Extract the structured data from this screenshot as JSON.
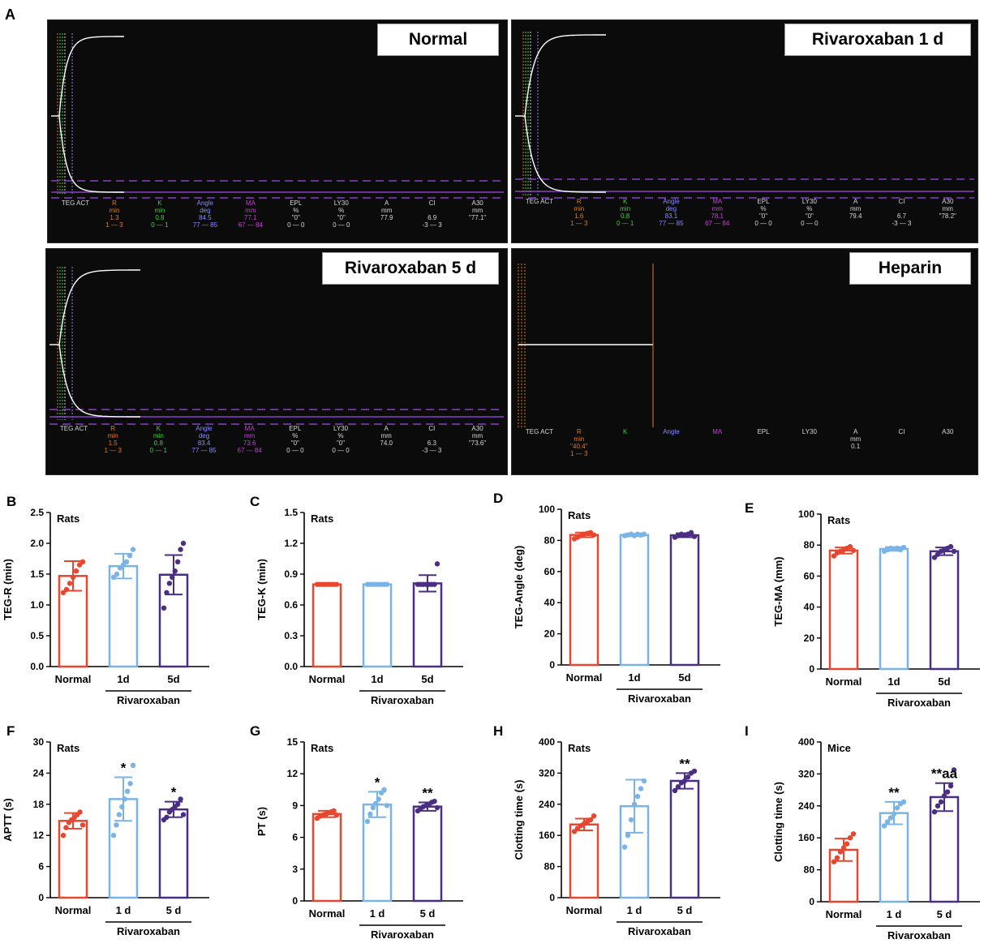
{
  "panel_A": {
    "letter": "A",
    "colors": {
      "bg": "#0b0b0b",
      "trace": "#ffffff",
      "dash": "#8a3fc7",
      "orange": "#e07b1a",
      "green": "#38d438",
      "blue": "#8a8aff",
      "magenta": "#c040d0",
      "white_text": "#d8d8d8"
    },
    "tracings": [
      {
        "title": "Normal",
        "header": [
          "TEG ACT",
          "R",
          "K",
          "Angle",
          "MA",
          "EPL",
          "LY30",
          "A",
          "CI",
          "A30"
        ],
        "units": [
          "",
          "min",
          "min",
          "deg",
          "mm",
          "%",
          "%",
          "mm",
          "",
          "mm"
        ],
        "values": [
          "",
          "1.3",
          "0.8",
          "84.5",
          "77.1",
          "\"0\"",
          "\"0\"",
          "77.9",
          "6.9",
          "\"77.1\""
        ],
        "ranges": [
          "",
          "1 — 3",
          "0 — 1",
          "77 — 85",
          "67 — 84",
          "0 — 0",
          "0 — 0",
          "",
          "-3 — 3",
          ""
        ]
      },
      {
        "title": "Rivaroxaban 1 d",
        "header": [
          "TEG ACT",
          "R",
          "K",
          "Angle",
          "MA",
          "EPL",
          "LY30",
          "A",
          "CI",
          "A30"
        ],
        "units": [
          "",
          "min",
          "min",
          "deg",
          "mm",
          "%",
          "%",
          "mm",
          "",
          "mm"
        ],
        "values": [
          "",
          "1.6",
          "0.8",
          "83.1",
          "78.1",
          "\"0\"",
          "\"0\"",
          "79.4",
          "6.7",
          "\"78.2\""
        ],
        "ranges": [
          "",
          "1 — 3",
          "0 — 1",
          "77 — 85",
          "67 — 84",
          "0 — 0",
          "0 — 0",
          "",
          "-3 — 3",
          ""
        ]
      },
      {
        "title": "Rivaroxaban 5 d",
        "header": [
          "TEG ACT",
          "R",
          "K",
          "Angle",
          "MA",
          "EPL",
          "LY30",
          "A",
          "CI",
          "A30"
        ],
        "units": [
          "",
          "min",
          "min",
          "deg",
          "mm",
          "%",
          "%",
          "mm",
          "",
          "mm"
        ],
        "values": [
          "",
          "1.5",
          "0.8",
          "83.4",
          "73.6",
          "\"0\"",
          "\"0\"",
          "74.0",
          "6.3",
          "\"73.6\""
        ],
        "ranges": [
          "",
          "1 — 3",
          "0 — 1",
          "77 — 85",
          "67 — 84",
          "0 — 0",
          "0 — 0",
          "",
          "-3 — 3",
          ""
        ]
      },
      {
        "title": "Heparin",
        "header": [
          "TEG ACT",
          "R",
          "K",
          "Angle",
          "MA",
          "EPL",
          "LY30",
          "A",
          "CI",
          "A30"
        ],
        "units": [
          "",
          "min",
          "",
          "",
          "",
          "",
          "",
          "mm",
          "",
          ""
        ],
        "values": [
          "",
          "\"40.4\"",
          "",
          "",
          "",
          "",
          "",
          "0.1",
          "",
          ""
        ],
        "ranges": [
          "",
          "1 — 3",
          "",
          "",
          "",
          "",
          "",
          "",
          "",
          ""
        ]
      }
    ]
  },
  "chart_data": [
    {
      "id": "B",
      "type": "bar",
      "letter": "B",
      "label": "Rats",
      "ylabel": "TEG-R (min)",
      "ylim": [
        0,
        2.5
      ],
      "yticks": [
        "0.0",
        "0.5",
        "1.0",
        "1.5",
        "2.0",
        "2.5"
      ],
      "categories": [
        "Normal",
        "1d",
        "5d"
      ],
      "group_label": "Rivaroxaban",
      "values": [
        1.47,
        1.63,
        1.49
      ],
      "sd": [
        0.24,
        0.2,
        0.32
      ],
      "sig": [
        "",
        "",
        ""
      ],
      "points": [
        [
          1.2,
          1.25,
          1.35,
          1.45,
          1.55,
          1.65,
          1.7
        ],
        [
          1.45,
          1.5,
          1.6,
          1.65,
          1.7,
          1.8,
          1.9
        ],
        [
          0.95,
          1.2,
          1.35,
          1.45,
          1.55,
          1.7,
          1.9,
          2.0
        ]
      ]
    },
    {
      "id": "C",
      "type": "bar",
      "letter": "C",
      "label": "Rats",
      "ylabel": "TEG-K (min)",
      "ylim": [
        0,
        1.5
      ],
      "yticks": [
        "0.0",
        "0.3",
        "0.6",
        "0.9",
        "1.2",
        "1.5"
      ],
      "categories": [
        "Normal",
        "1d",
        "5d"
      ],
      "group_label": "Rivaroxaban",
      "values": [
        0.8,
        0.8,
        0.81
      ],
      "sd": [
        0,
        0,
        0.08
      ],
      "sig": [
        "",
        "",
        ""
      ],
      "points": [
        [
          0.8,
          0.8,
          0.8,
          0.8,
          0.8,
          0.8,
          0.8,
          0.8
        ],
        [
          0.8,
          0.8,
          0.8,
          0.8,
          0.8,
          0.8,
          0.8,
          0.8
        ],
        [
          0.8,
          0.8,
          0.8,
          0.8,
          0.8,
          0.8,
          0.8,
          1.0
        ]
      ]
    },
    {
      "id": "D",
      "type": "bar",
      "letter": "D",
      "label": "Rats",
      "ylabel": "TEG-Angle (deg)",
      "ylim": [
        0,
        100
      ],
      "yticks": [
        "0",
        "20",
        "40",
        "60",
        "80",
        "100"
      ],
      "categories": [
        "Normal",
        "1d",
        "5d"
      ],
      "group_label": "Rivaroxaban",
      "values": [
        83.5,
        83.5,
        83.3
      ],
      "sd": [
        1.5,
        0.8,
        1.3
      ],
      "sig": [
        "",
        "",
        ""
      ],
      "points": [
        [
          81,
          82,
          83,
          84,
          84.5,
          85,
          83.5
        ],
        [
          83,
          83.5,
          84,
          83,
          84,
          83.5,
          84
        ],
        [
          82,
          83,
          84,
          83.5,
          84,
          85,
          82.5
        ]
      ]
    },
    {
      "id": "E",
      "type": "bar",
      "letter": "E",
      "label": "Rats",
      "ylabel": "TEG-MA (mm)",
      "ylim": [
        0,
        100
      ],
      "yticks": [
        "0",
        "20",
        "40",
        "60",
        "80",
        "100"
      ],
      "categories": [
        "Normal",
        "1d",
        "5d"
      ],
      "group_label": "Rivaroxaban",
      "values": [
        76.5,
        77.5,
        76
      ],
      "sd": [
        2,
        1.2,
        2.5
      ],
      "sig": [
        "",
        "",
        ""
      ],
      "points": [
        [
          73,
          75,
          76,
          77,
          78,
          79,
          76.5
        ],
        [
          76,
          77,
          78,
          77.5,
          78,
          77,
          78.5
        ],
        [
          72,
          74,
          76,
          77,
          78,
          79,
          76
        ]
      ]
    },
    {
      "id": "F",
      "type": "bar",
      "letter": "F",
      "label": "Rats",
      "ylabel": "APTT (s)",
      "ylim": [
        0,
        30
      ],
      "yticks": [
        "0",
        "6",
        "12",
        "18",
        "24",
        "30"
      ],
      "categories": [
        "Normal",
        "1 d",
        "5 d"
      ],
      "group_label": "Rivaroxaban",
      "values": [
        14.8,
        19,
        17
      ],
      "sd": [
        1.5,
        4.2,
        1.5
      ],
      "sig": [
        "",
        "*",
        "*"
      ],
      "points": [
        [
          12,
          13.5,
          14.5,
          15,
          15.5,
          16,
          16.5,
          14
        ],
        [
          12,
          14,
          16,
          17.5,
          19,
          20.5,
          22,
          25.5
        ],
        [
          15,
          15.5,
          16.5,
          17,
          17.5,
          18,
          19,
          16
        ]
      ]
    },
    {
      "id": "G",
      "type": "bar",
      "letter": "G",
      "label": "Rats",
      "ylabel": "PT (s)",
      "ylim": [
        0,
        15
      ],
      "yticks": [
        "0",
        "3",
        "6",
        "9",
        "12",
        "15"
      ],
      "categories": [
        "Normal",
        "1 d",
        "5 d"
      ],
      "group_label": "Rivaroxaban",
      "values": [
        8.2,
        9.1,
        8.9
      ],
      "sd": [
        0.3,
        1.2,
        0.4
      ],
      "sig": [
        "",
        "*",
        "**"
      ],
      "points": [
        [
          7.8,
          8.0,
          8.1,
          8.2,
          8.3,
          8.4,
          8.5,
          8.1
        ],
        [
          7.5,
          8.2,
          8.8,
          9.2,
          9.6,
          10.2,
          10.5,
          9
        ],
        [
          8.5,
          8.7,
          8.9,
          9,
          9.1,
          9.3,
          9.4,
          8.8
        ]
      ]
    },
    {
      "id": "H",
      "type": "bar",
      "letter": "H",
      "label": "Rats",
      "ylabel": "Clotting  time (s)",
      "ylim": [
        0,
        400
      ],
      "yticks": [
        "0",
        "80",
        "160",
        "240",
        "320",
        "400"
      ],
      "categories": [
        "Normal",
        "1 d",
        "5 d"
      ],
      "group_label": "Rivaroxaban",
      "values": [
        188,
        235,
        300
      ],
      "sd": [
        15,
        68,
        20
      ],
      "sig": [
        "",
        "",
        "**"
      ],
      "points": [
        [
          170,
          178,
          185,
          190,
          195,
          200,
          210
        ],
        [
          130,
          160,
          200,
          240,
          260,
          280,
          300
        ],
        [
          275,
          285,
          295,
          300,
          310,
          320,
          325
        ]
      ]
    },
    {
      "id": "I",
      "type": "bar",
      "letter": "I",
      "label": "Mice",
      "ylabel": "Clotting  time (s)",
      "ylim": [
        0,
        400
      ],
      "yticks": [
        "0",
        "80",
        "160",
        "240",
        "320",
        "400"
      ],
      "categories": [
        "Normal",
        "1 d",
        "5 d"
      ],
      "group_label": "Rivaroxaban",
      "values": [
        130,
        222,
        262
      ],
      "sd": [
        28,
        28,
        35
      ],
      "sig": [
        "",
        "**",
        "**aa"
      ],
      "points": [
        [
          100,
          110,
          125,
          135,
          145,
          160,
          170
        ],
        [
          190,
          200,
          210,
          220,
          235,
          245,
          250
        ],
        [
          225,
          240,
          250,
          265,
          275,
          290,
          330
        ]
      ]
    }
  ]
}
